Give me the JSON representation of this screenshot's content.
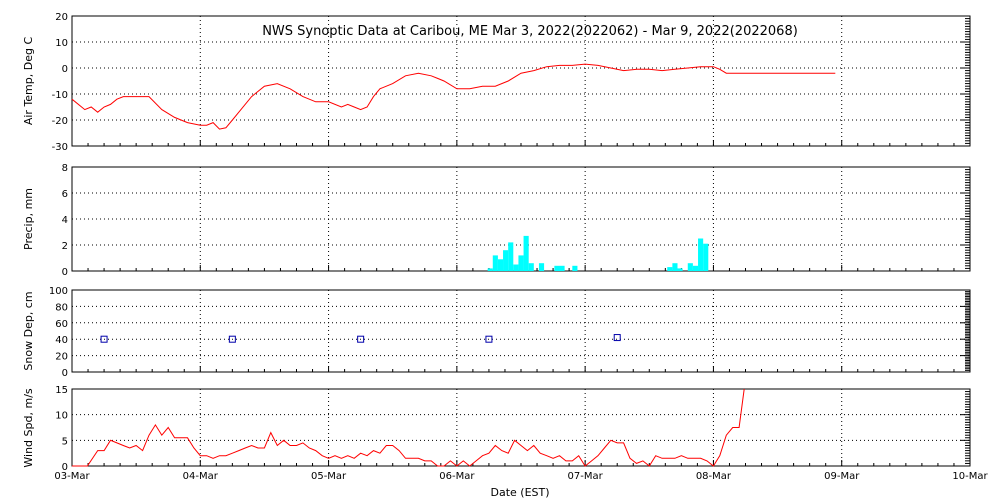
{
  "title": "NWS Synoptic Data at Caribou, ME   Mar  3, 2022(2022062) - Mar  9, 2022(2022068)",
  "x_axis": {
    "label": "Date (EST)",
    "range": [
      "03-Mar",
      "10-Mar"
    ],
    "ticks": [
      "03-Mar",
      "04-Mar",
      "05-Mar",
      "06-Mar",
      "07-Mar",
      "08-Mar",
      "09-Mar",
      "10-Mar"
    ]
  },
  "colors": {
    "line": "#ff0000",
    "precip": "#00ffff",
    "snow_marker": "#0000aa",
    "grid": "#000000"
  },
  "chart_data": [
    {
      "type": "line",
      "ylabel": "Air Temp, Deg C",
      "ylim": [
        -30,
        20
      ],
      "yticks": [
        20,
        10,
        0,
        -10,
        -20,
        -30
      ],
      "grid": true,
      "x_units": "days since 03-Mar 00:00 EST",
      "x": [
        0,
        0.1,
        0.15,
        0.2,
        0.25,
        0.3,
        0.35,
        0.4,
        0.5,
        0.6,
        0.7,
        0.8,
        0.9,
        1.0,
        1.05,
        1.1,
        1.15,
        1.2,
        1.25,
        1.3,
        1.4,
        1.5,
        1.6,
        1.7,
        1.8,
        1.9,
        2.0,
        2.1,
        2.15,
        2.2,
        2.25,
        2.3,
        2.35,
        2.4,
        2.5,
        2.6,
        2.7,
        2.8,
        2.85,
        2.9,
        3.0,
        3.1,
        3.2,
        3.3,
        3.4,
        3.5,
        3.6,
        3.7,
        3.8,
        3.9,
        4.0,
        4.1,
        4.2,
        4.3,
        4.4,
        4.5,
        4.6,
        4.7,
        4.8,
        4.9,
        5.0,
        5.05,
        5.1,
        5.2,
        5.3,
        5.4,
        5.5,
        5.6,
        5.7,
        5.8,
        5.9,
        5.95
      ],
      "series": [
        {
          "values": [
            -12,
            -16,
            -15,
            -17,
            -15,
            -14,
            -12,
            -11,
            -11,
            -11,
            -16,
            -19,
            -21,
            -22,
            -22,
            -21,
            -23.5,
            -23,
            -20,
            -17,
            -11,
            -7,
            -6,
            -8,
            -11,
            -13,
            -13,
            -15,
            -14,
            -15,
            -16,
            -15,
            -11,
            -8,
            -6,
            -3,
            -2,
            -3,
            -4,
            -5,
            -8,
            -8,
            -7,
            -7,
            -5,
            -2,
            -1,
            0.5,
            1,
            1,
            1.5,
            1,
            0,
            -1,
            -0.5,
            -0.5,
            -1,
            -0.5,
            0,
            0.5,
            0.5,
            -0.5,
            -2,
            -2,
            -2,
            -2,
            -2,
            -2,
            -2,
            -2,
            -2,
            -2
          ]
        }
      ]
    },
    {
      "type": "bar",
      "ylabel": "Precip, mm",
      "ylim": [
        0,
        8
      ],
      "yticks": [
        0,
        2,
        4,
        6,
        8
      ],
      "grid": true,
      "x_units": "days since 03-Mar 00:00 EST",
      "bin_width_days": 0.04,
      "x": [
        3.24,
        3.28,
        3.32,
        3.36,
        3.4,
        3.44,
        3.48,
        3.52,
        3.56,
        3.64,
        3.76,
        3.8,
        3.9,
        4.64,
        4.68,
        4.72,
        4.8,
        4.84,
        4.88,
        4.92
      ],
      "series": [
        {
          "values": [
            0.2,
            1.2,
            0.9,
            1.6,
            2.2,
            0.5,
            1.2,
            2.7,
            0.6,
            0.6,
            0.4,
            0.4,
            0.4,
            0.3,
            0.6,
            0.2,
            0.6,
            0.4,
            2.5,
            2.1
          ]
        }
      ]
    },
    {
      "type": "scatter",
      "ylabel": "Snow Dep, cm",
      "ylim": [
        0,
        100
      ],
      "yticks": [
        0,
        20,
        40,
        60,
        80,
        100
      ],
      "grid": true,
      "x_units": "days since 03-Mar 00:00 EST",
      "x": [
        0.25,
        1.25,
        2.25,
        3.25,
        4.25
      ],
      "series": [
        {
          "values": [
            40,
            40,
            40,
            40,
            42
          ]
        }
      ]
    },
    {
      "type": "line",
      "ylabel": "Wind Spd, m/s",
      "ylim": [
        0,
        15
      ],
      "yticks": [
        0,
        5,
        10,
        15
      ],
      "grid": true,
      "x_units": "days since 03-Mar 00:00 EST",
      "x": [
        0,
        0.12,
        0.2,
        0.25,
        0.3,
        0.35,
        0.4,
        0.45,
        0.5,
        0.55,
        0.6,
        0.65,
        0.7,
        0.75,
        0.8,
        0.85,
        0.9,
        0.95,
        1.0,
        1.05,
        1.1,
        1.15,
        1.2,
        1.25,
        1.3,
        1.35,
        1.4,
        1.45,
        1.5,
        1.55,
        1.6,
        1.65,
        1.7,
        1.75,
        1.8,
        1.85,
        1.9,
        1.95,
        2.0,
        2.05,
        2.1,
        2.15,
        2.2,
        2.25,
        2.3,
        2.35,
        2.4,
        2.45,
        2.5,
        2.55,
        2.6,
        2.65,
        2.7,
        2.75,
        2.8,
        2.85,
        2.9,
        2.95,
        3.0,
        3.05,
        3.1,
        3.15,
        3.2,
        3.25,
        3.3,
        3.35,
        3.4,
        3.45,
        3.5,
        3.55,
        3.6,
        3.65,
        3.7,
        3.75,
        3.8,
        3.85,
        3.9,
        3.95,
        4.0,
        4.05,
        4.1,
        4.15,
        4.2,
        4.25,
        4.3,
        4.35,
        4.4,
        4.45,
        4.5,
        4.55,
        4.6,
        4.65,
        4.7,
        4.75,
        4.8,
        4.85,
        4.9,
        4.95,
        5.0,
        5.05,
        5.1,
        5.15,
        5.2,
        5.24
      ],
      "series": [
        {
          "values": [
            0,
            0,
            3,
            3,
            5,
            4.5,
            4,
            3.5,
            4,
            3,
            6,
            8,
            6,
            7.5,
            5.5,
            5.5,
            5.5,
            3.5,
            2,
            2,
            1.5,
            2,
            2,
            2.5,
            3,
            3.5,
            4,
            3.5,
            3.5,
            6.5,
            4,
            5,
            4,
            4,
            4.5,
            3.5,
            3,
            2,
            1.5,
            2,
            1.5,
            2,
            1.5,
            2.5,
            2,
            3,
            2.5,
            4,
            4,
            3,
            1.5,
            1.5,
            1.5,
            1,
            1,
            0,
            0,
            1,
            0,
            1,
            0,
            1,
            2,
            2.5,
            4,
            3,
            2.5,
            5,
            4,
            3,
            4,
            2.5,
            2,
            1.5,
            2,
            1,
            1,
            2,
            0,
            1,
            2,
            3.5,
            5,
            4.5,
            4.5,
            1.5,
            0.5,
            1,
            0,
            2,
            1.5,
            1.5,
            1.5,
            2,
            1.5,
            1.5,
            1.5,
            1,
            0,
            2,
            6,
            7.5,
            7.5,
            15
          ]
        }
      ]
    }
  ]
}
